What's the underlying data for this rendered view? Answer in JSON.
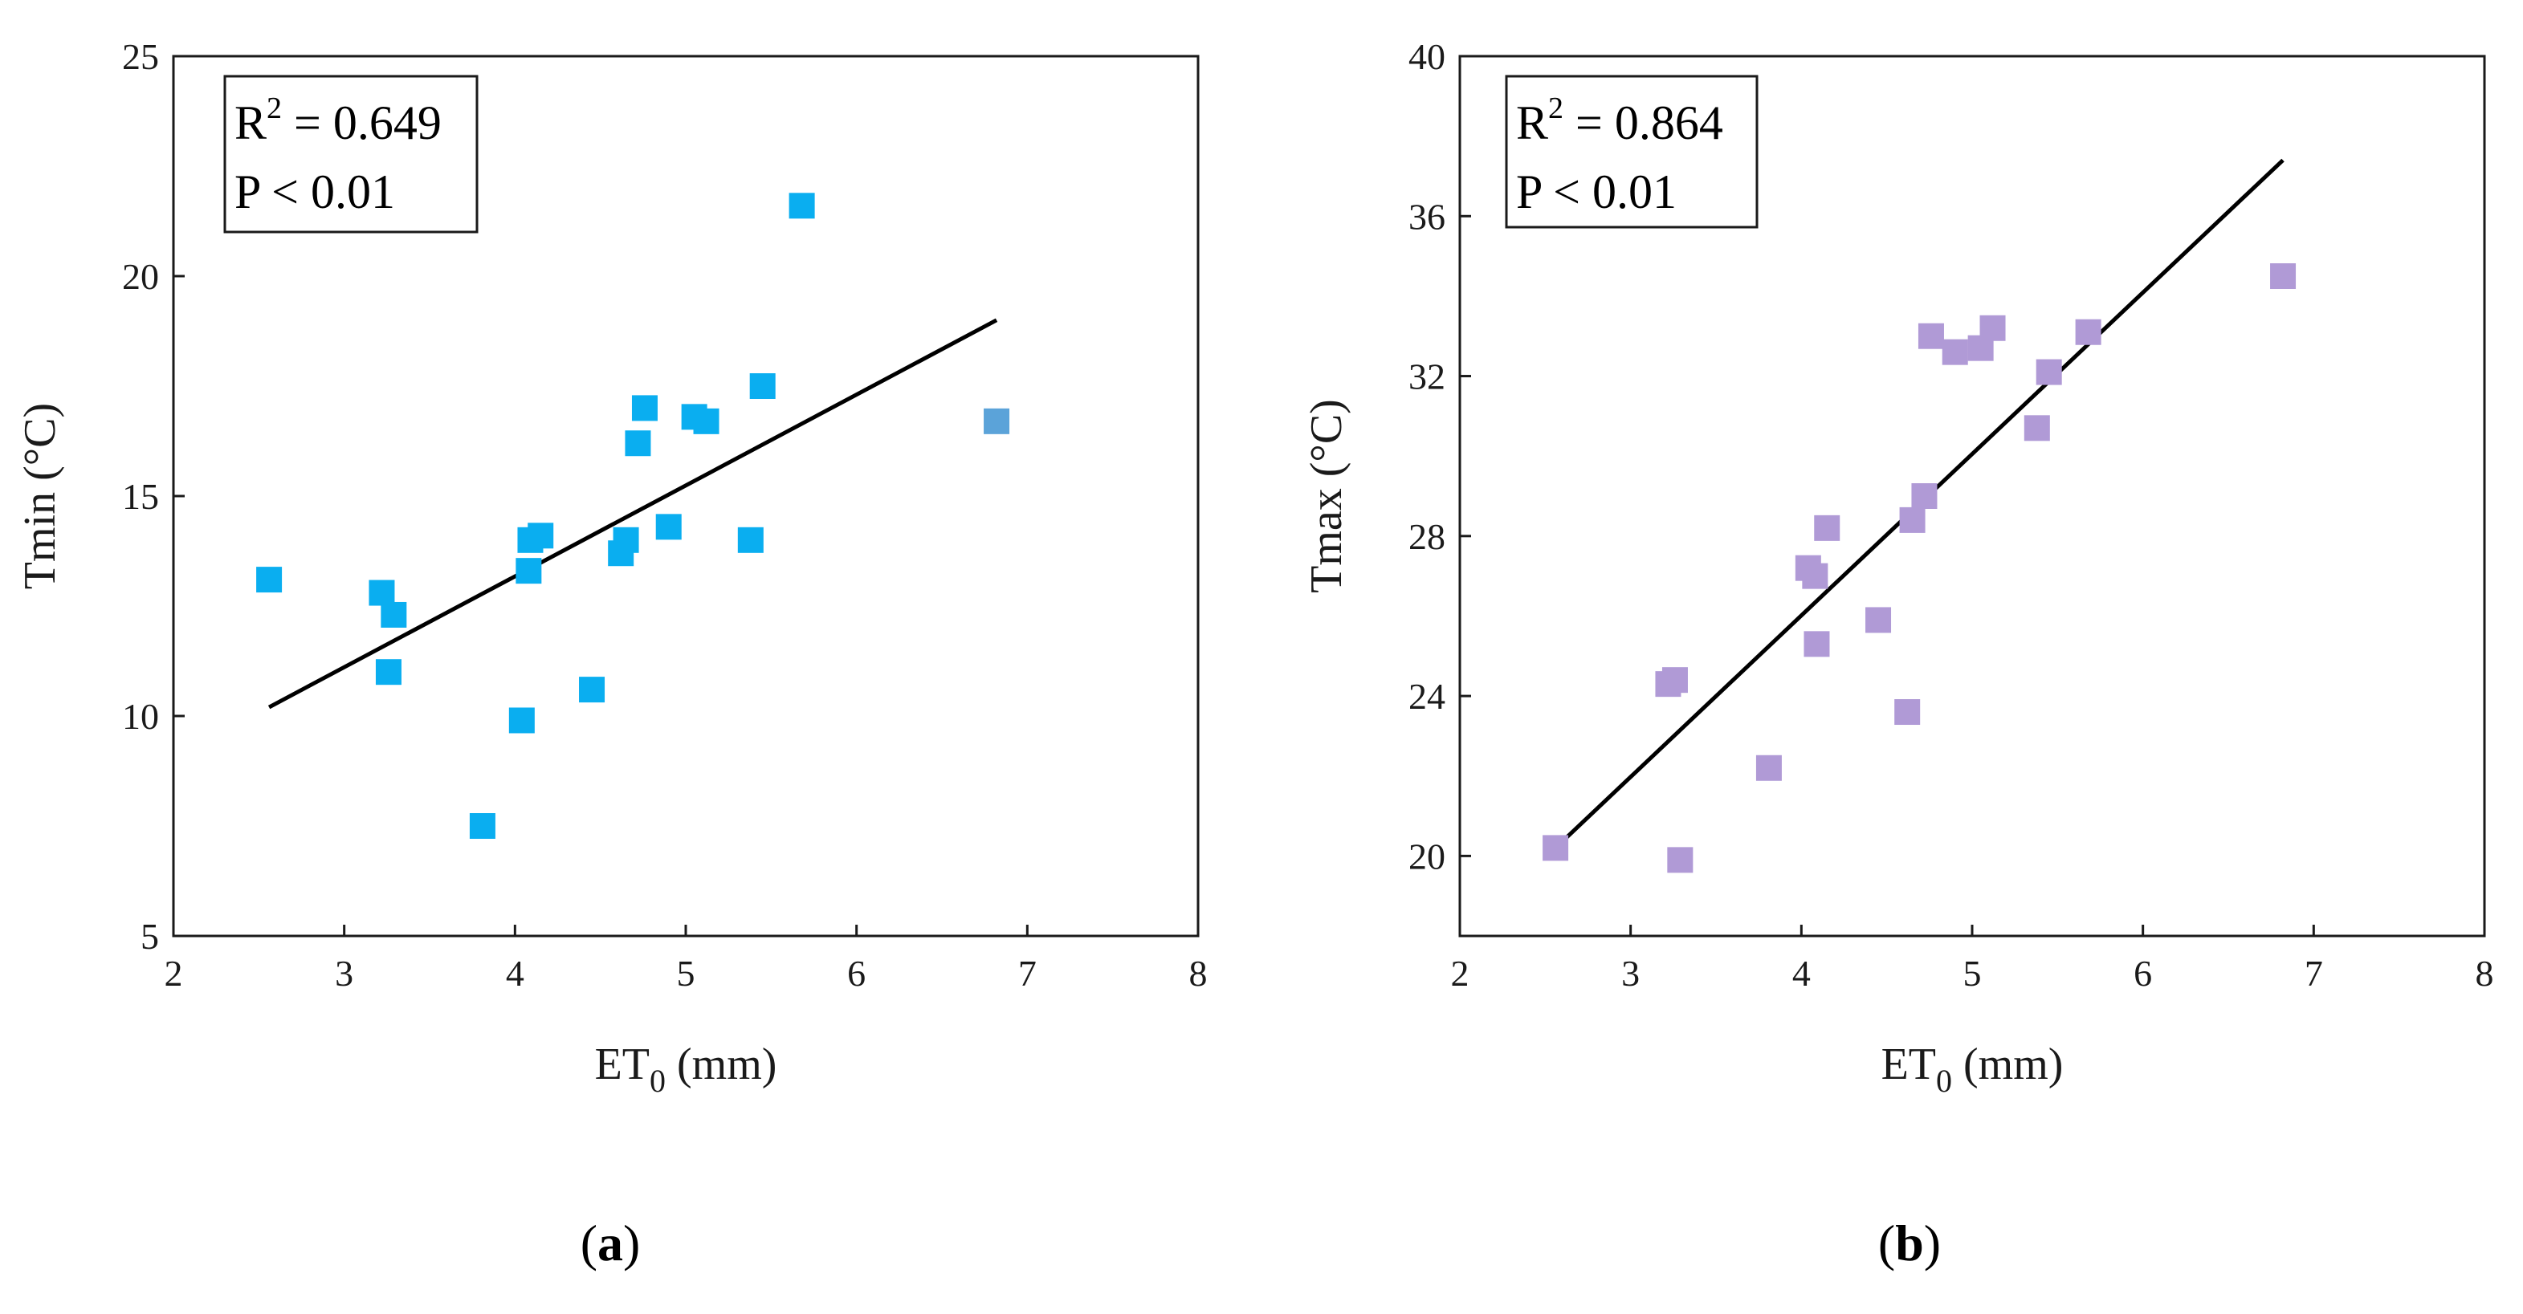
{
  "chart_data": [
    {
      "type": "scatter",
      "panel_label": "a",
      "xlabel_main": "ET",
      "xlabel_sub": "0",
      "xlabel_unit": " (mm)",
      "ylabel": "Tmin (°C)",
      "xlim": [
        2,
        8
      ],
      "ylim": [
        5,
        25
      ],
      "xticks": [
        "2",
        "3",
        "4",
        "5",
        "6",
        "7",
        "8"
      ],
      "yticks": [
        "5",
        "10",
        "15",
        "20",
        "25"
      ],
      "stats": {
        "r2_prefix": "R",
        "r2_sup": "2",
        "r2_value": " = 0.649",
        "p_text": "P < 0.01"
      },
      "marker_color": "#0AAEF0",
      "highlight_color": "#5BA3D9",
      "trendline": {
        "x": [
          2.56,
          6.82
        ],
        "y": [
          10.2,
          19.0
        ]
      },
      "points": [
        {
          "x": 2.56,
          "y": 13.1
        },
        {
          "x": 3.22,
          "y": 12.8
        },
        {
          "x": 3.29,
          "y": 12.3
        },
        {
          "x": 3.26,
          "y": 11.0
        },
        {
          "x": 3.81,
          "y": 7.5
        },
        {
          "x": 4.04,
          "y": 9.9
        },
        {
          "x": 4.08,
          "y": 13.3
        },
        {
          "x": 4.09,
          "y": 14.0
        },
        {
          "x": 4.15,
          "y": 14.1
        },
        {
          "x": 4.45,
          "y": 10.6
        },
        {
          "x": 4.62,
          "y": 13.7
        },
        {
          "x": 4.65,
          "y": 14.0
        },
        {
          "x": 4.72,
          "y": 16.2
        },
        {
          "x": 4.76,
          "y": 17.0
        },
        {
          "x": 4.9,
          "y": 14.3
        },
        {
          "x": 5.05,
          "y": 16.8
        },
        {
          "x": 5.12,
          "y": 16.7
        },
        {
          "x": 5.38,
          "y": 14.0
        },
        {
          "x": 5.45,
          "y": 17.5
        },
        {
          "x": 5.68,
          "y": 21.6
        },
        {
          "x": 6.82,
          "y": 16.7,
          "highlight": true
        }
      ]
    },
    {
      "type": "scatter",
      "panel_label": "b",
      "xlabel_main": "ET",
      "xlabel_sub": "0",
      "xlabel_unit": " (mm)",
      "ylabel": "Tmax (°C)",
      "xlim": [
        2,
        8
      ],
      "ylim": [
        18,
        40
      ],
      "xticks": [
        "2",
        "3",
        "4",
        "5",
        "6",
        "7",
        "8"
      ],
      "yticks": [
        "20",
        "24",
        "28",
        "32",
        "36",
        "40"
      ],
      "stats": {
        "r2_prefix": "R",
        "r2_sup": "2",
        "r2_value": " = 0.864",
        "p_text": "P < 0.01"
      },
      "marker_color": "#B09AD6",
      "trendline": {
        "x": [
          2.56,
          6.82
        ],
        "y": [
          20.2,
          37.4
        ]
      },
      "points": [
        {
          "x": 2.56,
          "y": 20.2
        },
        {
          "x": 3.22,
          "y": 24.3
        },
        {
          "x": 3.26,
          "y": 24.4
        },
        {
          "x": 3.29,
          "y": 19.9
        },
        {
          "x": 3.81,
          "y": 22.2
        },
        {
          "x": 4.04,
          "y": 27.2
        },
        {
          "x": 4.08,
          "y": 27.0
        },
        {
          "x": 4.09,
          "y": 25.3
        },
        {
          "x": 4.15,
          "y": 28.2
        },
        {
          "x": 4.45,
          "y": 25.9
        },
        {
          "x": 4.62,
          "y": 23.6
        },
        {
          "x": 4.65,
          "y": 28.4
        },
        {
          "x": 4.72,
          "y": 29.0
        },
        {
          "x": 4.76,
          "y": 33.0
        },
        {
          "x": 4.9,
          "y": 32.6
        },
        {
          "x": 5.05,
          "y": 32.7
        },
        {
          "x": 5.12,
          "y": 33.2
        },
        {
          "x": 5.38,
          "y": 30.7
        },
        {
          "x": 5.45,
          "y": 32.1
        },
        {
          "x": 5.68,
          "y": 33.1
        },
        {
          "x": 6.82,
          "y": 34.5
        }
      ]
    }
  ]
}
